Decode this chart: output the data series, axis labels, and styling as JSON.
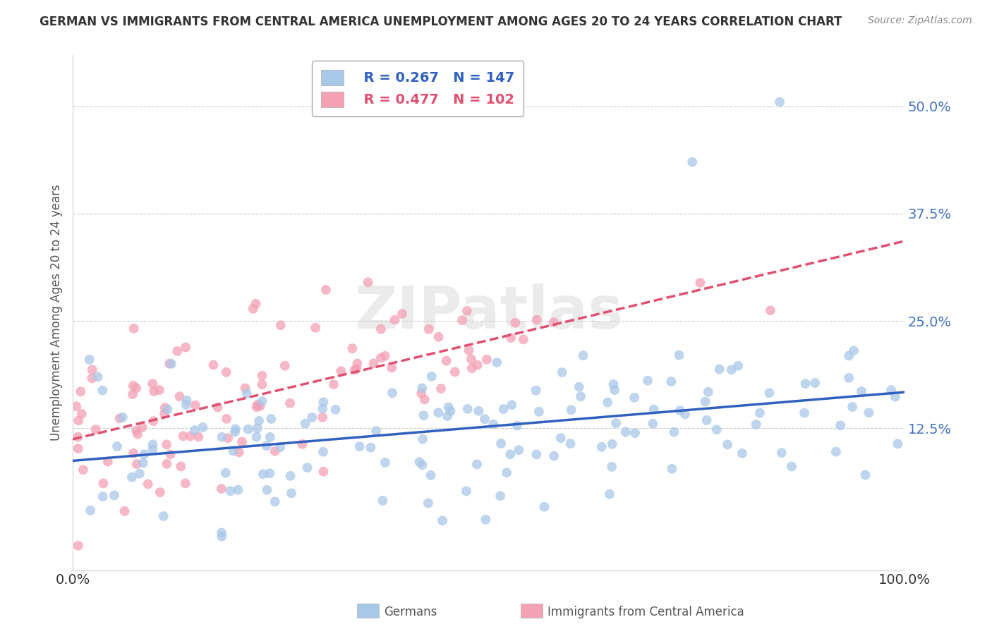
{
  "title": "GERMAN VS IMMIGRANTS FROM CENTRAL AMERICA UNEMPLOYMENT AMONG AGES 20 TO 24 YEARS CORRELATION CHART",
  "source": "Source: ZipAtlas.com",
  "ylabel": "Unemployment Among Ages 20 to 24 years",
  "xlim": [
    0,
    1
  ],
  "ylim": [
    -0.04,
    0.56
  ],
  "yticks": [
    0.125,
    0.25,
    0.375,
    0.5
  ],
  "ytick_labels": [
    "12.5%",
    "25.0%",
    "37.5%",
    "50.0%"
  ],
  "german_color": "#a8c8e8",
  "immigrant_color": "#f4a0b5",
  "german_line_color": "#3060c0",
  "immigrant_line_color": "#e05070",
  "german_R": 0.267,
  "german_N": 147,
  "immigrant_R": 0.477,
  "immigrant_N": 102,
  "watermark": "ZIPatlas",
  "background_color": "#ffffff",
  "grid_color": "#cccccc",
  "legend_label_german": "Germans",
  "legend_label_immigrant": "Immigrants from Central America"
}
